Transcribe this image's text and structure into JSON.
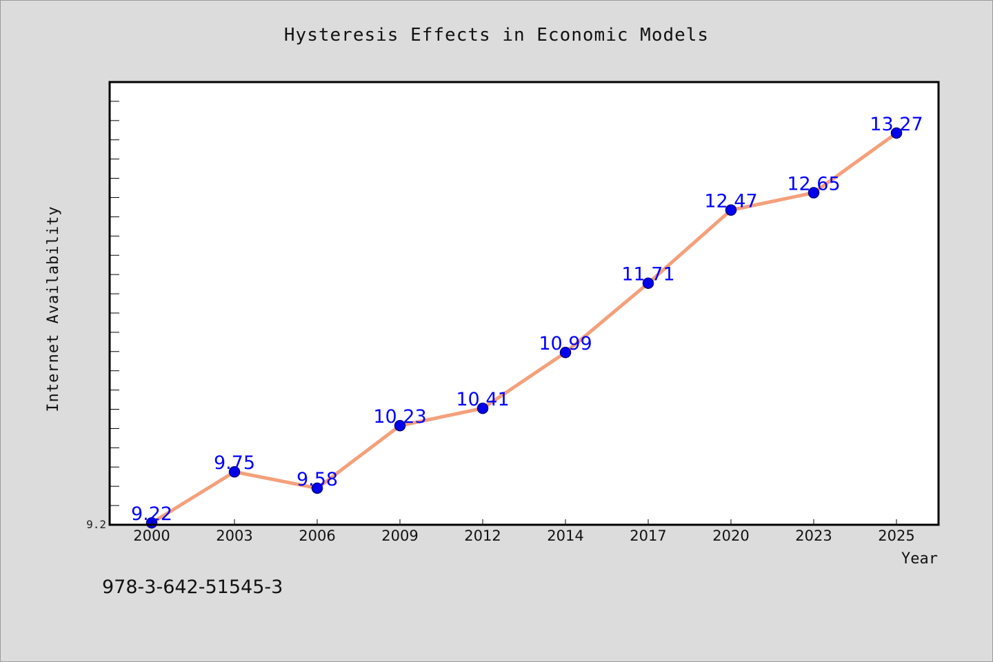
{
  "chart_data": {
    "type": "line",
    "title": "Hysteresis Effects in Economic Models",
    "xlabel": "Year",
    "ylabel": "Internet Availability",
    "categories": [
      "2000",
      "2003",
      "2006",
      "2009",
      "2012",
      "2014",
      "2017",
      "2020",
      "2023",
      "2025"
    ],
    "series": [
      {
        "values": [
          9.22,
          9.75,
          9.58,
          10.23,
          10.41,
          10.99,
          11.71,
          12.47,
          12.65,
          13.27
        ]
      }
    ],
    "data_labels": [
      "9.22",
      "9.75",
      "9.58",
      "10.23",
      "10.41",
      "10.99",
      "11.71",
      "12.47",
      "12.65",
      "13.27"
    ],
    "y_tick_labels": [
      "9.2"
    ],
    "ylim": [
      9.2,
      13.8
    ],
    "y_minor_tick_step": 0.2,
    "grid": false,
    "colors": {
      "line": "#f4a07a",
      "marker": "#0000ee",
      "marker_edge": "#000080",
      "data_label": "#0000ff",
      "plot_background": "#ffffff",
      "figure_background": "#dcdcdc"
    }
  },
  "footer": {
    "isbn": "978-3-642-51545-3"
  }
}
